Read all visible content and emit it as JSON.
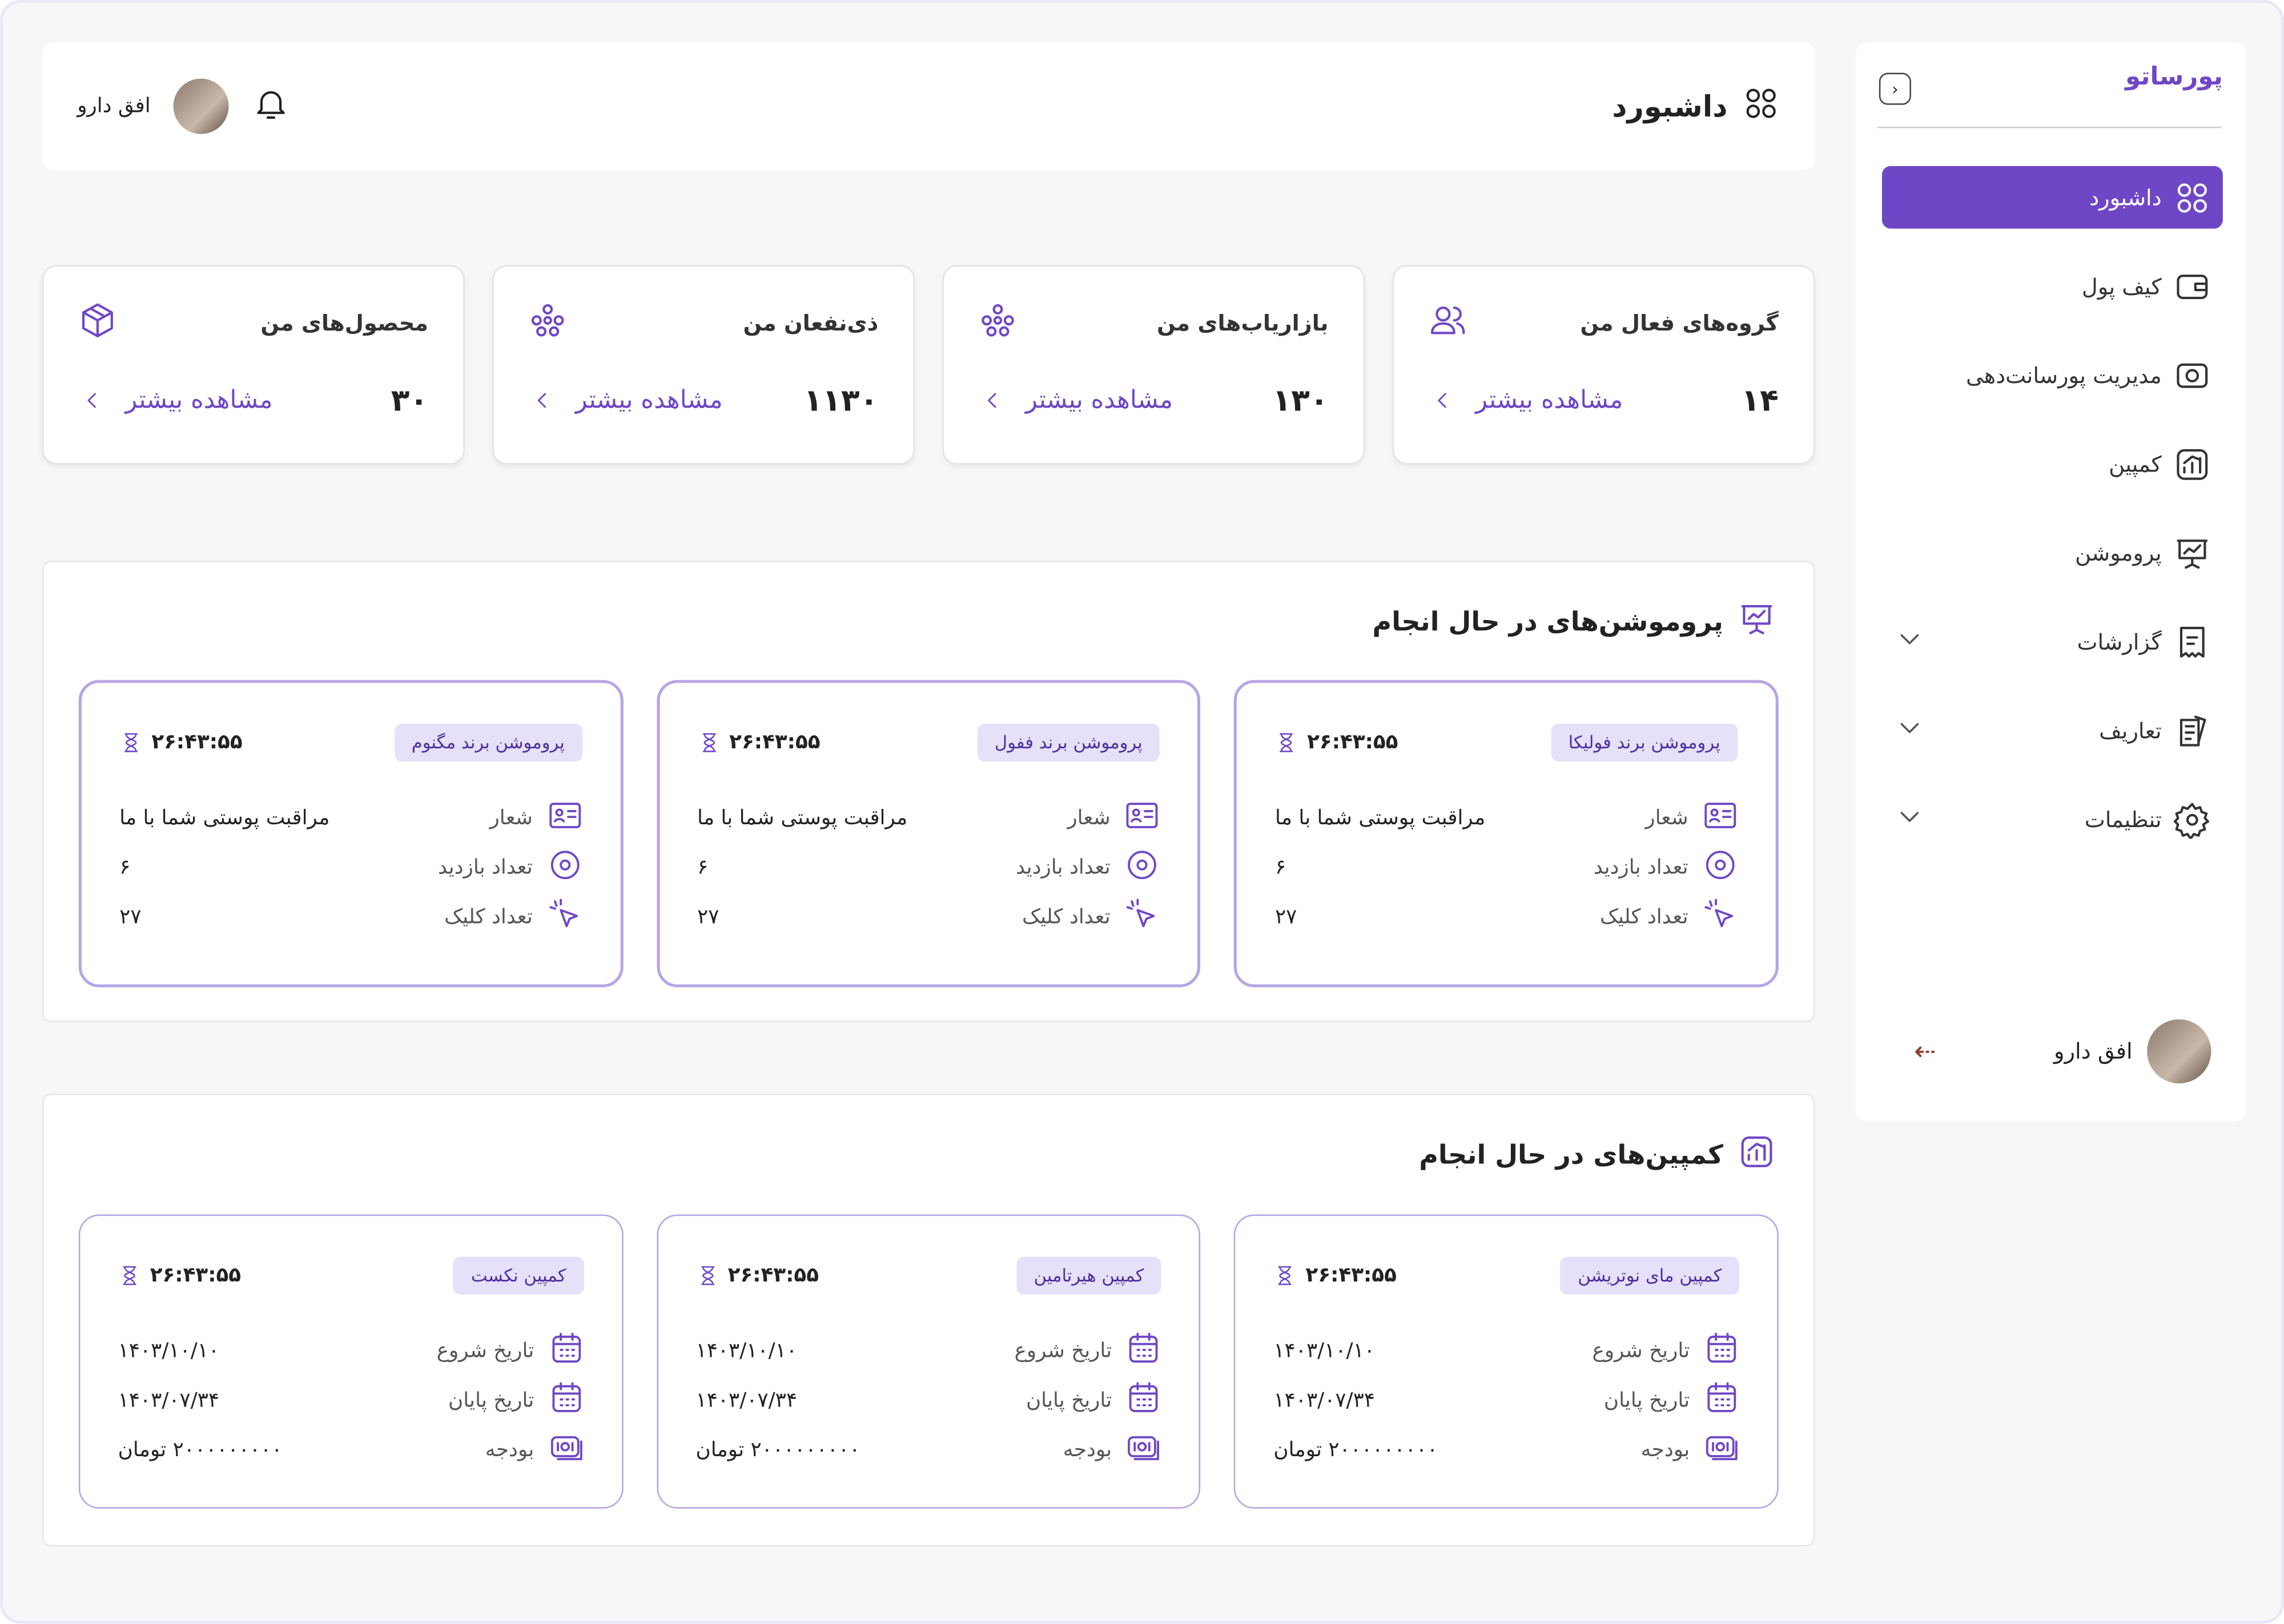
{
  "sidebar": {
    "logo": "پورساتو",
    "menu": [
      {
        "label": "داشبورد",
        "active": true,
        "icon": "grid"
      },
      {
        "label": "کیف پول",
        "icon": "wallet"
      },
      {
        "label": "مدیریت پورسانت‌دهی",
        "icon": "camera"
      },
      {
        "label": "کمپین",
        "icon": "chart"
      },
      {
        "label": "پروموشن",
        "icon": "board"
      },
      {
        "label": "گزارشات",
        "icon": "receipt",
        "expandable": true
      },
      {
        "label": "تعاریف",
        "icon": "note",
        "expandable": true
      },
      {
        "label": "تنظیمات",
        "icon": "gear",
        "expandable": true
      }
    ],
    "user": "افق دارو"
  },
  "header": {
    "title": "داشبورد",
    "user": "افق دارو"
  },
  "stats": [
    {
      "title": "گروه‌های فعال من",
      "value": "۱۴",
      "link": "مشاهده بیشتر",
      "icon": "users"
    },
    {
      "title": "بازاریاب‌های من",
      "value": "۱۳۰",
      "link": "مشاهده بیشتر",
      "icon": "network"
    },
    {
      "title": "ذی‌نفعان من",
      "value": "۱۱۳۰",
      "link": "مشاهده بیشتر",
      "icon": "network"
    },
    {
      "title": "محصول‌های من",
      "value": "۳۰",
      "link": "مشاهده بیشتر",
      "icon": "box"
    }
  ],
  "promotions": {
    "title": "پروموشن‌های در حال انجام",
    "cards": [
      {
        "tag": "پروموشن برند فولیکا",
        "timer": "۲۶:۴۳:۵۵",
        "rows": [
          {
            "label": "شعار",
            "value": "مراقبت پوستی شما با ما",
            "icon": "card"
          },
          {
            "label": "تعداد بازدید",
            "value": "۶",
            "icon": "eye"
          },
          {
            "label": "تعداد کلیک",
            "value": "۲۷",
            "icon": "click"
          }
        ]
      },
      {
        "tag": "پروموشن برند ففول",
        "timer": "۲۶:۴۳:۵۵",
        "rows": [
          {
            "label": "شعار",
            "value": "مراقبت پوستی شما با ما",
            "icon": "card"
          },
          {
            "label": "تعداد بازدید",
            "value": "۶",
            "icon": "eye"
          },
          {
            "label": "تعداد کلیک",
            "value": "۲۷",
            "icon": "click"
          }
        ]
      },
      {
        "tag": "پروموشن برند مگنوم",
        "timer": "۲۶:۴۳:۵۵",
        "rows": [
          {
            "label": "شعار",
            "value": "مراقبت پوستی شما با ما",
            "icon": "card"
          },
          {
            "label": "تعداد بازدید",
            "value": "۶",
            "icon": "eye"
          },
          {
            "label": "تعداد کلیک",
            "value": "۲۷",
            "icon": "click"
          }
        ]
      }
    ]
  },
  "campaigns": {
    "title": "کمپین‌های در حال انجام",
    "cards": [
      {
        "tag": "کمپین مای نوتریشن",
        "timer": "۲۶:۴۳:۵۵",
        "rows": [
          {
            "label": "تاریخ شروع",
            "value": "۱۴۰۳/۱۰/۱۰",
            "icon": "cal"
          },
          {
            "label": "تاریخ پایان",
            "value": "۱۴۰۳/۰۷/۳۴",
            "icon": "cal"
          },
          {
            "label": "بودجه",
            "value": "۲۰۰۰۰۰۰۰۰۰ تومان",
            "icon": "money"
          }
        ]
      },
      {
        "tag": "کمپین هیرتامین",
        "timer": "۲۶:۴۳:۵۵",
        "rows": [
          {
            "label": "تاریخ شروع",
            "value": "۱۴۰۳/۱۰/۱۰",
            "icon": "cal"
          },
          {
            "label": "تاریخ پایان",
            "value": "۱۴۰۳/۰۷/۳۴",
            "icon": "cal"
          },
          {
            "label": "بودجه",
            "value": "۲۰۰۰۰۰۰۰۰۰ تومان",
            "icon": "money"
          }
        ]
      },
      {
        "tag": "کمپین نکست",
        "timer": "۲۶:۴۳:۵۵",
        "rows": [
          {
            "label": "تاریخ شروع",
            "value": "۱۴۰۳/۱۰/۱۰",
            "icon": "cal"
          },
          {
            "label": "تاریخ پایان",
            "value": "۱۴۰۳/۰۷/۳۴",
            "icon": "cal"
          },
          {
            "label": "بودجه",
            "value": "۲۰۰۰۰۰۰۰۰۰ تومان",
            "icon": "money"
          }
        ]
      }
    ]
  }
}
